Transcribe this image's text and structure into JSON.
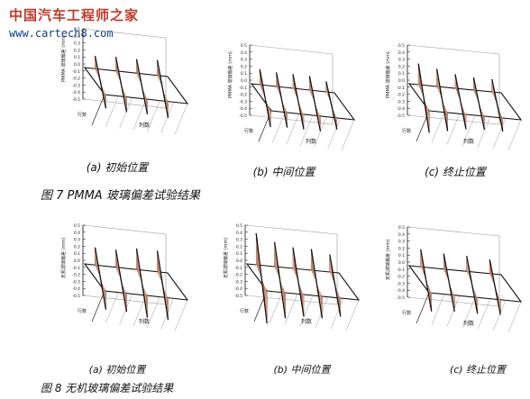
{
  "watermark": {
    "title": "中国汽车工程师之家",
    "url": "www.cartech8.com"
  },
  "figure7": {
    "caption": "图 7 PMMA 玻璃偏差试验结果",
    "panels": [
      {
        "label": "(a) 初始位置",
        "zlabel": "PMMA 玻璃偏差 (mm)",
        "ylabel": "列数",
        "xlabel": "行数"
      },
      {
        "label": "(b) 中间位置",
        "zlabel": "PMMA 玻璃偏差 (mm)",
        "ylabel": "列数",
        "xlabel": "行数"
      },
      {
        "label": "(c) 终止位置",
        "zlabel": "PMMA 玻璃偏差 (mm)",
        "ylabel": "列数",
        "xlabel": "行数"
      }
    ]
  },
  "figure8": {
    "caption": "图 8 无机玻璃偏差试验结果",
    "panels": [
      {
        "label": "(a) 初始位置",
        "zlabel": "无机玻璃偏差 (mm)",
        "ylabel": "列数",
        "xlabel": "行数"
      },
      {
        "label": "(b) 中间位置",
        "zlabel": "无机玻璃偏差 (mm)",
        "ylabel": "列数",
        "xlabel": "行数"
      },
      {
        "label": "(c) 终止位置",
        "zlabel": "无机玻璃偏差 (mm)",
        "ylabel": "列数",
        "xlabel": "行数"
      }
    ]
  },
  "axis_ticks": [
    "0.5",
    "0.4",
    "0.3",
    "0.2",
    "0.1",
    "0.0",
    "-0.1",
    "-0.2",
    "-0.3",
    "-0.4",
    "-0.5"
  ],
  "chart_data": [
    {
      "type": "line",
      "id": "fig7a",
      "zlim": [
        -0.5,
        0.5
      ],
      "series_count": 4,
      "amplitudes": [
        0.18,
        0.2,
        0.2,
        0.22
      ]
    },
    {
      "type": "line",
      "id": "fig7b",
      "zlim": [
        -0.5,
        0.5
      ],
      "series_count": 5,
      "amplitudes": [
        0.22,
        0.2,
        0.2,
        0.2,
        0.15
      ]
    },
    {
      "type": "line",
      "id": "fig7c",
      "zlim": [
        -0.5,
        0.5
      ],
      "series_count": 5,
      "amplitudes": [
        0.3,
        0.25,
        0.2,
        0.18,
        0.18
      ]
    },
    {
      "type": "line",
      "id": "fig8a",
      "zlim": [
        -0.5,
        0.5
      ],
      "series_count": 4,
      "amplitudes": [
        0.25,
        0.25,
        0.3,
        0.3
      ]
    },
    {
      "type": "line",
      "id": "fig8b",
      "zlim": [
        -0.5,
        0.5
      ],
      "series_count": 5,
      "amplitudes": [
        0.45,
        0.35,
        0.3,
        0.3,
        0.25
      ]
    },
    {
      "type": "line",
      "id": "fig8c",
      "zlim": [
        -0.5,
        0.5
      ],
      "series_count": 4,
      "amplitudes": [
        0.25,
        0.22,
        0.22,
        0.2
      ]
    }
  ],
  "colors": {
    "fill": "#f6cdb5",
    "stroke": "#8a2a12",
    "frame": "#111111",
    "grid": "#9a9a9a"
  }
}
